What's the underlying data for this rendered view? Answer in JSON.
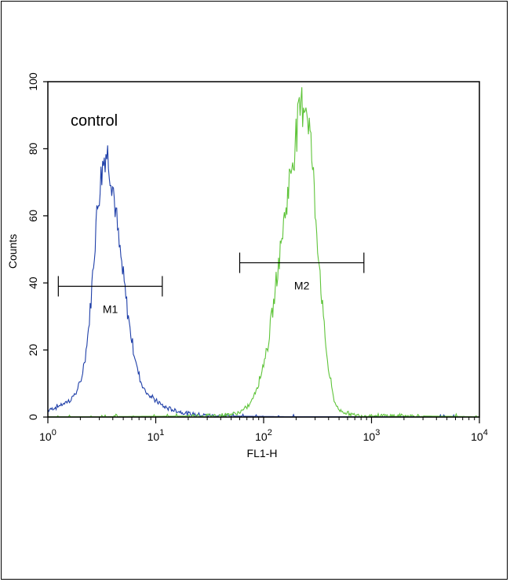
{
  "chart_data": {
    "type": "line",
    "x_scale": "log",
    "xlim": [
      1,
      10000
    ],
    "ylim": [
      0,
      100
    ],
    "xlabel": "FL1-H",
    "ylabel": "Counts",
    "x_ticks": [
      {
        "value": 1,
        "base": "10",
        "exp": "0"
      },
      {
        "value": 10,
        "base": "10",
        "exp": "1"
      },
      {
        "value": 100,
        "base": "10",
        "exp": "2"
      },
      {
        "value": 1000,
        "base": "10",
        "exp": "3"
      },
      {
        "value": 10000,
        "base": "10",
        "exp": "4"
      }
    ],
    "y_ticks": [
      {
        "value": 0,
        "label": "0"
      },
      {
        "value": 20,
        "label": "20"
      },
      {
        "value": 40,
        "label": "40"
      },
      {
        "value": 60,
        "label": "60"
      },
      {
        "value": 80,
        "label": "80"
      },
      {
        "value": 100,
        "label": "100"
      }
    ],
    "annotation": "control",
    "markers": [
      {
        "label": "M1",
        "x_start": 1.25,
        "x_end": 11.5,
        "y": 39
      },
      {
        "label": "M2",
        "x_start": 60,
        "x_end": 850,
        "y": 46
      }
    ],
    "series": [
      {
        "color": "#1f3fa8",
        "x": [
          1,
          1.2,
          1.4,
          1.6,
          1.8,
          2.0,
          2.2,
          2.4,
          2.6,
          2.8,
          3.0,
          3.2,
          3.4,
          3.6,
          3.8,
          4.0,
          4.3,
          4.6,
          5.0,
          5.4,
          5.8,
          6.3,
          6.8,
          7.4,
          8.0,
          9.0,
          10,
          12,
          15,
          20,
          30,
          50,
          80,
          200,
          1000,
          10000
        ],
        "y": [
          2,
          3,
          4,
          5,
          7,
          10,
          17,
          27,
          42,
          58,
          68,
          75,
          79,
          78,
          74,
          69,
          60,
          50,
          42,
          33,
          26,
          19,
          14,
          10,
          8,
          6,
          5,
          3,
          2,
          1,
          0.5,
          0.3,
          0.2,
          0.1,
          0,
          0
        ]
      },
      {
        "color": "#5fc43a",
        "x": [
          1,
          20,
          40,
          55,
          65,
          75,
          85,
          95,
          110,
          125,
          140,
          160,
          180,
          200,
          220,
          240,
          260,
          280,
          300,
          330,
          360,
          400,
          450,
          500,
          700,
          1000,
          3000,
          10000
        ],
        "y": [
          0,
          0.3,
          0.5,
          1,
          2,
          4,
          8,
          13,
          22,
          35,
          48,
          62,
          74,
          84,
          92,
          95,
          90,
          78,
          62,
          45,
          28,
          14,
          5,
          2,
          0.5,
          0.4,
          0.3,
          0.1
        ]
      }
    ]
  }
}
